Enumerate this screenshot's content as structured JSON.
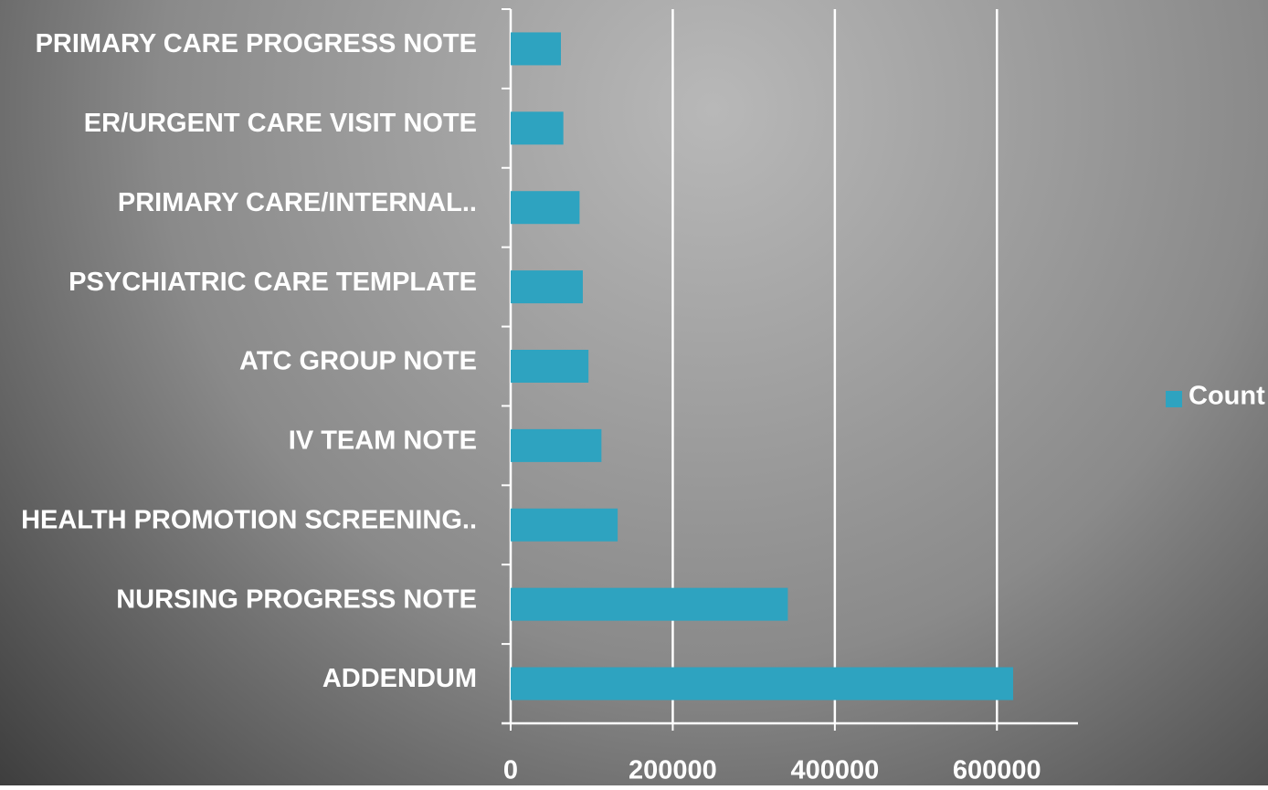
{
  "chart_data": {
    "type": "barh",
    "categories": [
      "PRIMARY CARE PROGRESS NOTE",
      "ER/URGENT CARE VISIT NOTE",
      "PRIMARY CARE/INTERNAL..",
      "PSYCHIATRIC CARE TEMPLATE",
      "ATC GROUP NOTE",
      "IV TEAM NOTE",
      "HEALTH PROMOTION SCREENING..",
      "NURSING PROGRESS NOTE",
      "ADDENDUM"
    ],
    "series": [
      {
        "name": "Count",
        "color": "#2ea3c0",
        "values": [
          62000,
          65000,
          85000,
          89000,
          96000,
          112000,
          132000,
          342000,
          620000
        ]
      }
    ],
    "xlim": [
      0,
      700000
    ],
    "xticks": [
      0,
      200000,
      400000,
      600000
    ],
    "grid": true,
    "legend": "right"
  }
}
